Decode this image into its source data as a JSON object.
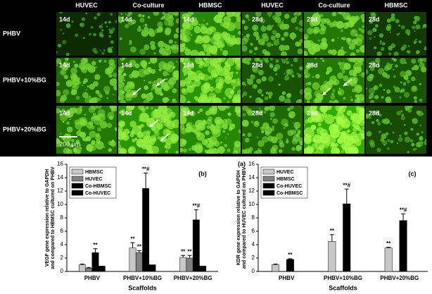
{
  "micrographs": {
    "column_headers": [
      "HUVEC",
      "Co-culture",
      "HBMSC",
      "HUVEC",
      "Co-culture",
      "HBMSC"
    ],
    "row_labels": [
      "PHBV",
      "PHBV+10%BG",
      "PHBV+20%BG"
    ],
    "day_labels": [
      [
        "14d",
        "14d",
        "14d",
        "28d",
        "28d",
        "28d"
      ],
      [
        "14d",
        "14d",
        "14d",
        "28d",
        "28d",
        "28d"
      ],
      [
        "14d",
        "14d",
        "14d",
        "28d",
        "28d",
        "28d"
      ]
    ],
    "scale_bar": "200 μm",
    "panel_label": "(a)"
  },
  "chart_data": [
    {
      "type": "bar",
      "title": "(b)",
      "ylabel": [
        "VEGF gene expression relative to GAPDH",
        "and compared to HBMSC cultured on PHBV"
      ],
      "xlabel": "Scaffolds",
      "categories": [
        "PHBV",
        "PHBV+10%BG",
        "PHBV+20%BG"
      ],
      "series": [
        {
          "name": "HBMSC",
          "color": "#c8c8c8",
          "values": [
            1.0,
            3.5,
            2.1
          ],
          "errors": [
            0.1,
            0.8,
            0.3
          ],
          "annotations": [
            null,
            "**",
            "**"
          ]
        },
        {
          "name": "HUVEC",
          "color": "#808080",
          "values": [
            0.5,
            2.8,
            2.0
          ],
          "errors": [
            0.1,
            0.3,
            0.4
          ],
          "annotations": [
            null,
            "**",
            "**"
          ]
        },
        {
          "name": "Co-HBMSC",
          "color": "#000000",
          "values": [
            2.8,
            12.4,
            7.7
          ],
          "errors": [
            0.6,
            2.3,
            1.5
          ],
          "annotations": [
            "**",
            "**#",
            "**#"
          ]
        },
        {
          "name": "Co-HUVEC",
          "color": "#000000",
          "values": [
            0.8,
            1.0,
            0.8
          ],
          "errors": [
            null,
            null,
            null
          ],
          "annotations": [
            null,
            null,
            null
          ]
        }
      ],
      "ylim": [
        0,
        16
      ],
      "yticks": [
        0,
        2,
        4,
        6,
        8,
        10,
        12,
        14,
        16
      ],
      "legend": "top-left"
    },
    {
      "type": "bar",
      "title": "(c)",
      "ylabel": [
        "KDR gene expression relative to GAPDH",
        "and compared to HUVEC cultured on PHBV"
      ],
      "xlabel": "Scaffolds",
      "categories": [
        "PHBV",
        "PHBV+10%BG",
        "PHBV+20%BG"
      ],
      "series": [
        {
          "name": "HUVEC",
          "color": "#c8c8c8",
          "values": [
            1.0,
            4.5,
            3.5
          ],
          "errors": [
            0.1,
            1.0,
            0.1
          ],
          "annotations": [
            null,
            "**",
            "**"
          ]
        },
        {
          "name": "HBMSC",
          "color": "#808080",
          "values": [
            null,
            null,
            null
          ],
          "errors": [
            null,
            null,
            null
          ],
          "annotations": [
            null,
            null,
            null
          ]
        },
        {
          "name": "Co-HUVEC",
          "color": "#000000",
          "values": [
            1.8,
            10.1,
            7.6
          ],
          "errors": [
            0.1,
            2.2,
            1.0
          ],
          "annotations": [
            "**",
            "**#",
            "**#"
          ]
        },
        {
          "name": "Co-HBMSC",
          "color": "#000000",
          "values": [
            null,
            null,
            null
          ],
          "errors": [
            null,
            null,
            null
          ],
          "annotations": [
            null,
            null,
            null
          ]
        }
      ],
      "ylim": [
        0,
        16
      ],
      "yticks": [
        0,
        2,
        4,
        6,
        8,
        10,
        12,
        14,
        16
      ],
      "legend": "top-left"
    }
  ]
}
